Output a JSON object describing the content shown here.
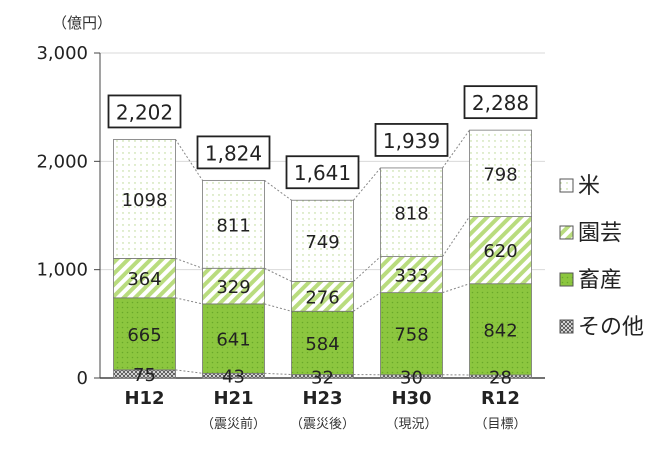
{
  "chart_data": {
    "type": "bar",
    "stacked": true,
    "unit": "（億円）",
    "categories": [
      "H12",
      "H21",
      "H23",
      "H30",
      "R12"
    ],
    "category_notes": [
      "",
      "（震災前）",
      "（震災後）",
      "（現況）",
      "（目標）"
    ],
    "series": [
      {
        "name": "その他",
        "values": [
          75,
          43,
          32,
          30,
          28
        ],
        "color": "#8c8c8c",
        "pattern": "crosshatch"
      },
      {
        "name": "畜産",
        "values": [
          665,
          641,
          584,
          758,
          842
        ],
        "color": "#8cc63f",
        "pattern": "dots"
      },
      {
        "name": "園芸",
        "values": [
          364,
          329,
          276,
          333,
          620
        ],
        "color": "#b9dc7e",
        "pattern": "diagonal"
      },
      {
        "name": "米",
        "values": [
          1098,
          811,
          749,
          818,
          798
        ],
        "color": "#ffffff",
        "pattern": "sparse-dots"
      }
    ],
    "totals": [
      "2,202",
      "1,824",
      "1,641",
      "1,939",
      "2,288"
    ],
    "y_ticks": [
      "0",
      "1,000",
      "2,000",
      "3,000"
    ],
    "ylim": [
      0,
      3000
    ],
    "grid": true,
    "legend_position": "right",
    "legend_order": [
      "米",
      "園芸",
      "畜産",
      "その他"
    ]
  }
}
